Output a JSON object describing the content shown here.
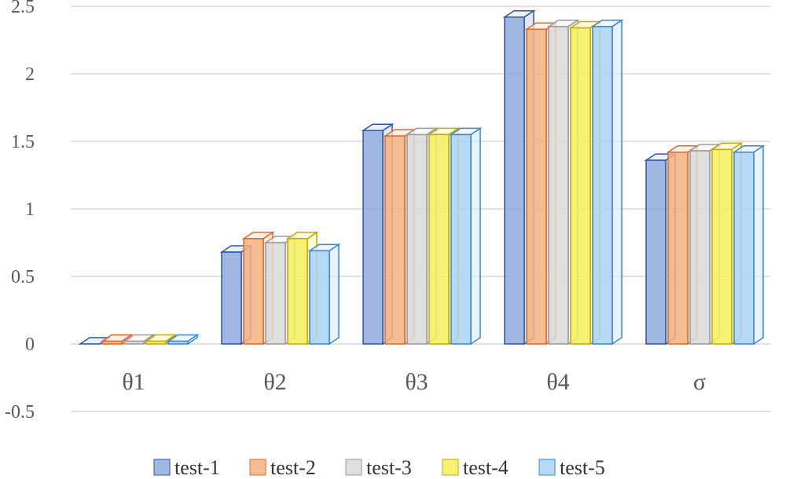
{
  "chart_data": {
    "type": "bar",
    "title": "",
    "xlabel": "",
    "ylabel": "",
    "ylim": [
      -0.5,
      2.5
    ],
    "yticks": [
      "-0.5",
      "0",
      "0.5",
      "1",
      "1.5",
      "2",
      "2.5"
    ],
    "grid": true,
    "legend_position": "bottom",
    "style": "3d-clustered-column",
    "categories": [
      "θ1",
      "θ2",
      "θ3",
      "θ4",
      "σ"
    ],
    "series": [
      {
        "name": "test-1",
        "color": "#8faadc",
        "edge": "#2f55a4",
        "values": [
          0.0,
          0.68,
          1.58,
          2.42,
          1.36
        ]
      },
      {
        "name": "test-2",
        "color": "#f4b183",
        "edge": "#e06a22",
        "values": [
          0.02,
          0.78,
          1.54,
          2.33,
          1.42
        ]
      },
      {
        "name": "test-3",
        "color": "#d9d9d9",
        "edge": "#9a9a9a",
        "values": [
          0.02,
          0.75,
          1.55,
          2.35,
          1.43
        ]
      },
      {
        "name": "test-4",
        "color": "#f5f05a",
        "edge": "#c9a800",
        "values": [
          0.02,
          0.78,
          1.55,
          2.34,
          1.44
        ]
      },
      {
        "name": "test-5",
        "color": "#a9d3f5",
        "edge": "#3a86cf",
        "values": [
          0.02,
          0.69,
          1.55,
          2.35,
          1.42
        ]
      }
    ]
  }
}
